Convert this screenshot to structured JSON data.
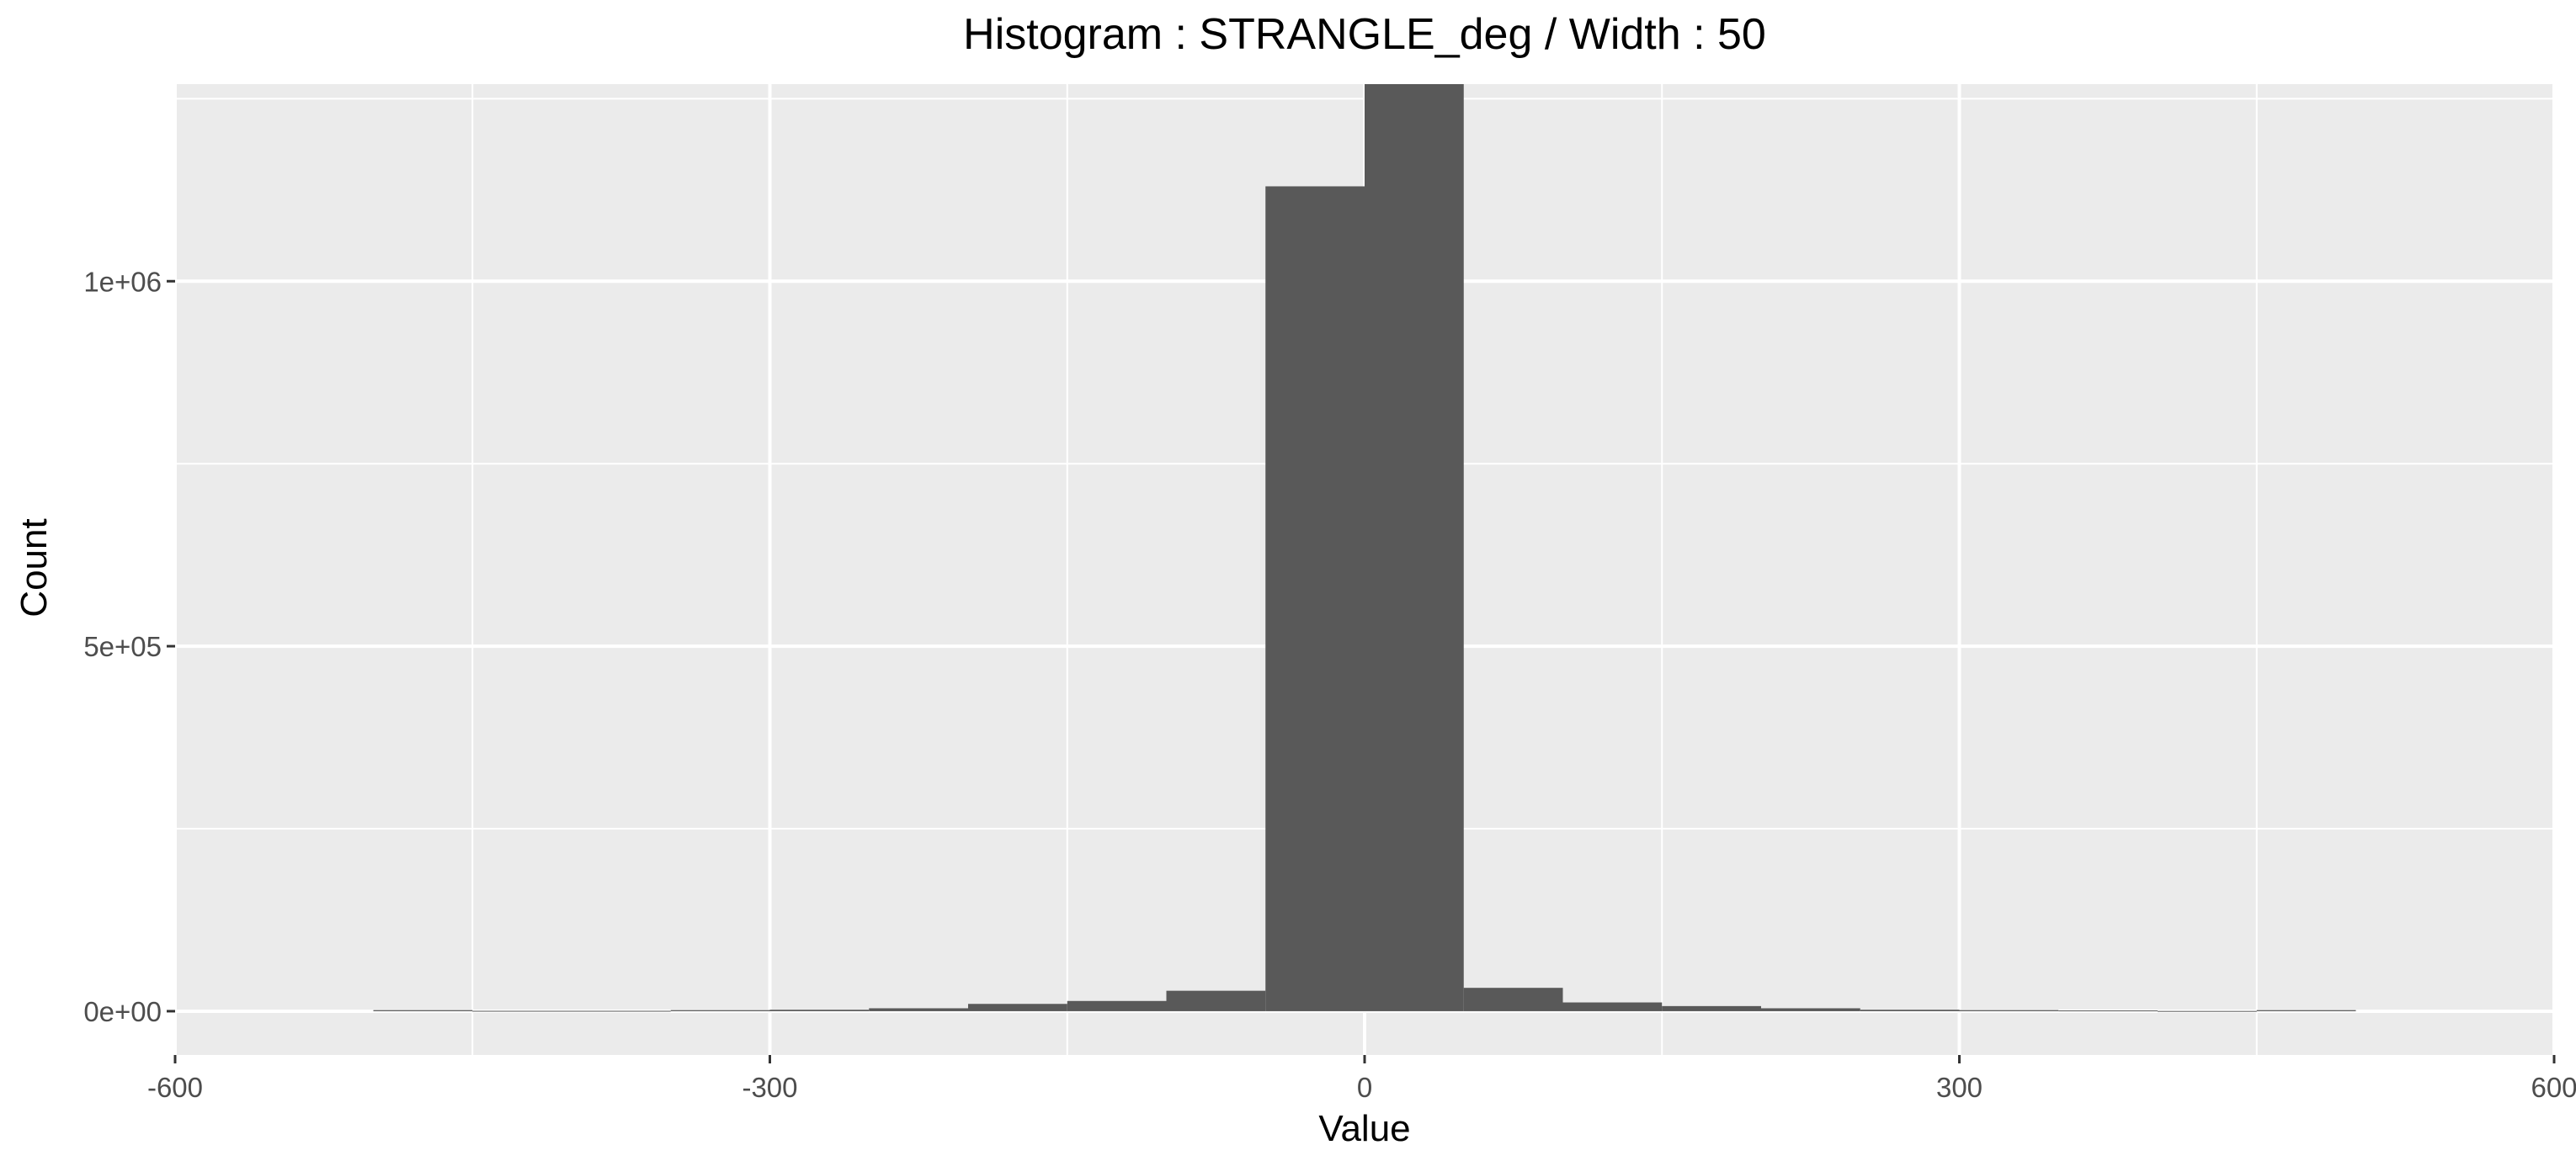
{
  "chart_data": {
    "type": "bar",
    "title": "Histogram : STRANGLE_deg / Width : 50",
    "xlabel": "Value",
    "ylabel": "Count",
    "xlim": [
      -600,
      600
    ],
    "ylim": [
      -60000,
      1270000
    ],
    "bin_width": 50,
    "x_ticks": [
      -600,
      -300,
      0,
      300,
      600
    ],
    "x_tick_labels": [
      "-600",
      "-300",
      "0",
      "300",
      "600"
    ],
    "y_ticks": [
      0,
      500000,
      1000000
    ],
    "y_tick_labels": [
      "0e+00",
      "5e+05",
      "1e+06"
    ],
    "grid": true,
    "legend": "none",
    "colors": {
      "panel_background": "#ebebeb",
      "grid_line": "#ffffff",
      "bar_fill": "#595959",
      "tick_label": "#4d4d4d"
    },
    "bins": [
      {
        "x0": -500,
        "x1": -450,
        "count": 1500
      },
      {
        "x0": -450,
        "x1": -400,
        "count": 500
      },
      {
        "x0": -400,
        "x1": -350,
        "count": 500
      },
      {
        "x0": -350,
        "x1": -300,
        "count": 1500
      },
      {
        "x0": -300,
        "x1": -250,
        "count": 2000
      },
      {
        "x0": -250,
        "x1": -200,
        "count": 4000
      },
      {
        "x0": -200,
        "x1": -150,
        "count": 10000
      },
      {
        "x0": -150,
        "x1": -100,
        "count": 14000
      },
      {
        "x0": -100,
        "x1": -50,
        "count": 28000
      },
      {
        "x0": -50,
        "x1": 0,
        "count": 1130000
      },
      {
        "x0": 0,
        "x1": 50,
        "count": 1270000
      },
      {
        "x0": 50,
        "x1": 100,
        "count": 32000
      },
      {
        "x0": 100,
        "x1": 150,
        "count": 12000
      },
      {
        "x0": 150,
        "x1": 200,
        "count": 7000
      },
      {
        "x0": 200,
        "x1": 250,
        "count": 4000
      },
      {
        "x0": 250,
        "x1": 300,
        "count": 2000
      },
      {
        "x0": 300,
        "x1": 350,
        "count": 1500
      },
      {
        "x0": 350,
        "x1": 400,
        "count": 1000
      },
      {
        "x0": 400,
        "x1": 450,
        "count": 300
      },
      {
        "x0": 450,
        "x1": 500,
        "count": 1500
      }
    ]
  }
}
